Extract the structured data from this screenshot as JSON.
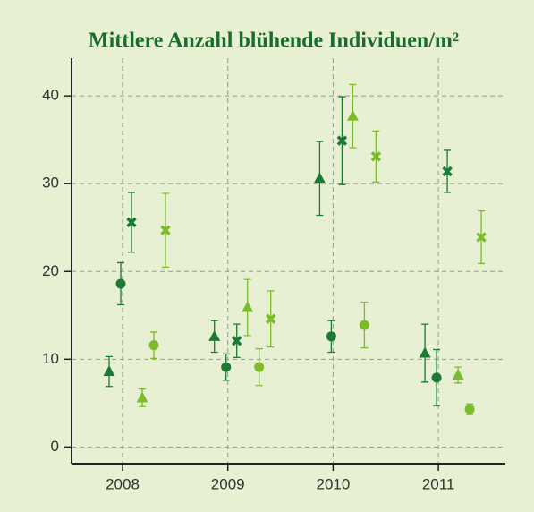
{
  "chart_data": {
    "type": "errorbar",
    "title": "Mittlere Anzahl blühende Individuen/m²",
    "categories": [
      "2008",
      "2009",
      "2010",
      "2011"
    ],
    "series": [
      {
        "color": "#1b7a34",
        "marker": "triangle",
        "values": [
          8.6,
          12.6,
          30.6,
          10.7
        ],
        "errors": [
          1.7,
          1.8,
          4.2,
          3.3
        ]
      },
      {
        "color": "#1b7a34",
        "marker": "circle",
        "values": [
          18.6,
          9.1,
          12.6,
          7.9
        ],
        "errors": [
          2.4,
          1.5,
          1.8,
          3.2
        ]
      },
      {
        "color": "#1b7a34",
        "marker": "cross",
        "values": [
          25.6,
          12.1,
          34.9,
          31.4
        ],
        "errors": [
          3.4,
          1.9,
          5.0,
          2.4
        ]
      },
      {
        "color": "#7cbb2a",
        "marker": "triangle",
        "values": [
          5.6,
          15.9,
          37.7,
          8.2
        ],
        "errors": [
          1.0,
          3.2,
          3.6,
          0.9
        ]
      },
      {
        "color": "#7cbb2a",
        "marker": "circle",
        "values": [
          11.6,
          9.1,
          13.9,
          4.3
        ],
        "errors": [
          1.5,
          2.1,
          2.6,
          0.6
        ]
      },
      {
        "color": "#7cbb2a",
        "marker": "cross",
        "values": [
          24.7,
          14.6,
          33.1,
          23.9
        ],
        "errors": [
          4.2,
          3.2,
          2.9,
          3.0
        ]
      }
    ],
    "ylim": [
      -1.9,
      44.3
    ],
    "yticks": [
      0,
      10,
      20,
      30,
      40
    ],
    "grid": true
  }
}
